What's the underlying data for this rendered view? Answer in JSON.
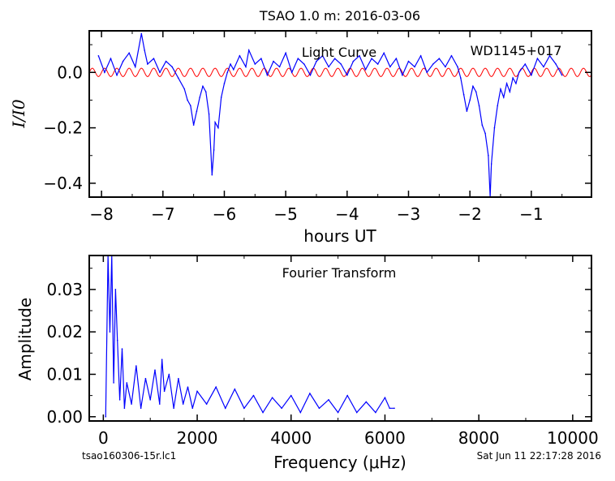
{
  "title": "TSAO 1.0 m:  2016-03-06",
  "footer": {
    "filename": "tsao160306-15r.lc1",
    "timestamp": "Sat Jun 11 22:17:28 2016"
  },
  "colors": {
    "light_curve": "#0000ff",
    "sinusoid": "#ff0000",
    "fourier": "#0000ff"
  },
  "chart_data": [
    {
      "type": "line",
      "annotations": [
        "Light Curve",
        "WD1145+017"
      ],
      "xlabel": "hours UT",
      "ylabel": "I/I0",
      "xlim": [
        -8.2,
        -0.02
      ],
      "ylim": [
        -0.45,
        0.15
      ],
      "xticks": [
        -8,
        -7,
        -6,
        -5,
        -4,
        -3,
        -2,
        -1
      ],
      "xtick_labels": [
        "−8",
        "−7",
        "−6",
        "−5",
        "−4",
        "−3",
        "−2",
        "−1"
      ],
      "yticks": [
        0.0,
        -0.2,
        -0.4
      ],
      "ytick_labels": [
        "0.0",
        "−0.2",
        "−0.4"
      ],
      "series": [
        {
          "x": [
            -8.05,
            -7.95,
            -7.85,
            -7.75,
            -7.65,
            -7.55,
            -7.45,
            -7.35,
            -7.3,
            -7.25,
            -7.15,
            -7.05,
            -6.95,
            -6.85,
            -6.75,
            -6.65,
            -6.6,
            -6.55,
            -6.5,
            -6.45,
            -6.4,
            -6.35,
            -6.3,
            -6.25,
            -6.2,
            -6.17,
            -6.15,
            -6.1,
            -6.05,
            -6.0,
            -5.95,
            -5.9,
            -5.85,
            -5.75,
            -5.65,
            -5.6,
            -5.5,
            -5.4,
            -5.3,
            -5.2,
            -5.1,
            -5.0,
            -4.9,
            -4.8,
            -4.7,
            -4.6,
            -4.5,
            -4.4,
            -4.3,
            -4.2,
            -4.1,
            -4.0,
            -3.9,
            -3.8,
            -3.7,
            -3.6,
            -3.5,
            -3.4,
            -3.3,
            -3.2,
            -3.1,
            -3.0,
            -2.9,
            -2.8,
            -2.7,
            -2.6,
            -2.5,
            -2.4,
            -2.3,
            -2.2,
            -2.15,
            -2.1,
            -2.05,
            -2.0,
            -1.95,
            -1.9,
            -1.85,
            -1.8,
            -1.75,
            -1.7,
            -1.67,
            -1.65,
            -1.6,
            -1.55,
            -1.5,
            -1.45,
            -1.4,
            -1.35,
            -1.3,
            -1.25,
            -1.2,
            -1.1,
            -1.0,
            -0.9,
            -0.8,
            -0.7,
            -0.6,
            -0.5
          ],
          "y": [
            0.06,
            0.0,
            0.05,
            -0.01,
            0.04,
            0.07,
            0.02,
            0.14,
            0.08,
            0.03,
            0.05,
            0.0,
            0.04,
            0.02,
            -0.02,
            -0.06,
            -0.1,
            -0.12,
            -0.19,
            -0.14,
            -0.09,
            -0.05,
            -0.07,
            -0.15,
            -0.37,
            -0.28,
            -0.18,
            -0.2,
            -0.09,
            -0.04,
            0.0,
            0.03,
            0.01,
            0.06,
            0.02,
            0.08,
            0.03,
            0.05,
            -0.01,
            0.04,
            0.02,
            0.07,
            0.0,
            0.05,
            0.03,
            -0.01,
            0.04,
            0.06,
            0.02,
            0.05,
            0.03,
            -0.01,
            0.04,
            0.06,
            0.01,
            0.05,
            0.03,
            0.07,
            0.02,
            0.05,
            -0.01,
            0.04,
            0.02,
            0.06,
            0.0,
            0.03,
            0.05,
            0.02,
            0.06,
            0.02,
            -0.02,
            -0.08,
            -0.14,
            -0.1,
            -0.05,
            -0.07,
            -0.12,
            -0.19,
            -0.22,
            -0.3,
            -0.45,
            -0.33,
            -0.2,
            -0.12,
            -0.06,
            -0.09,
            -0.04,
            -0.07,
            -0.02,
            -0.04,
            0.0,
            0.03,
            -0.01,
            0.05,
            0.02,
            0.06,
            0.03,
            -0.01
          ]
        },
        {
          "kind": "sinusoid",
          "amplitude": 0.015,
          "period_hours": 0.2,
          "x_range": [
            -8.2,
            -0.02
          ]
        }
      ]
    },
    {
      "type": "line",
      "annotations": [
        "Fourier Transform"
      ],
      "xlabel": "Frequency (μHz)",
      "ylabel": "Amplitude",
      "xlim": [
        -300,
        10400
      ],
      "ylim": [
        -0.001,
        0.038
      ],
      "xticks": [
        0,
        2000,
        4000,
        6000,
        8000,
        10000
      ],
      "xtick_labels": [
        "0",
        "2000",
        "4000",
        "6000",
        "8000",
        "10000"
      ],
      "yticks": [
        0.0,
        0.01,
        0.02,
        0.03
      ],
      "ytick_labels": [
        "0.00",
        "0.01",
        "0.02",
        "0.03"
      ],
      "series": [
        {
          "x": [
            50,
            100,
            140,
            180,
            220,
            260,
            300,
            350,
            400,
            450,
            500,
            600,
            700,
            800,
            900,
            1000,
            1100,
            1200,
            1250,
            1300,
            1400,
            1500,
            1600,
            1700,
            1800,
            1900,
            2000,
            2200,
            2400,
            2600,
            2800,
            3000,
            3200,
            3400,
            3600,
            3800,
            4000,
            4200,
            4400,
            4600,
            4800,
            5000,
            5200,
            5400,
            5600,
            5800,
            6000,
            6100,
            6200
          ],
          "y": [
            0.0,
            0.038,
            0.02,
            0.038,
            0.008,
            0.03,
            0.018,
            0.004,
            0.016,
            0.002,
            0.008,
            0.003,
            0.012,
            0.002,
            0.009,
            0.004,
            0.011,
            0.003,
            0.0135,
            0.006,
            0.01,
            0.002,
            0.009,
            0.003,
            0.007,
            0.002,
            0.006,
            0.003,
            0.007,
            0.002,
            0.0065,
            0.002,
            0.005,
            0.001,
            0.0045,
            0.002,
            0.005,
            0.001,
            0.0055,
            0.002,
            0.004,
            0.001,
            0.005,
            0.001,
            0.0035,
            0.001,
            0.0045,
            0.002,
            0.002
          ]
        }
      ]
    }
  ]
}
